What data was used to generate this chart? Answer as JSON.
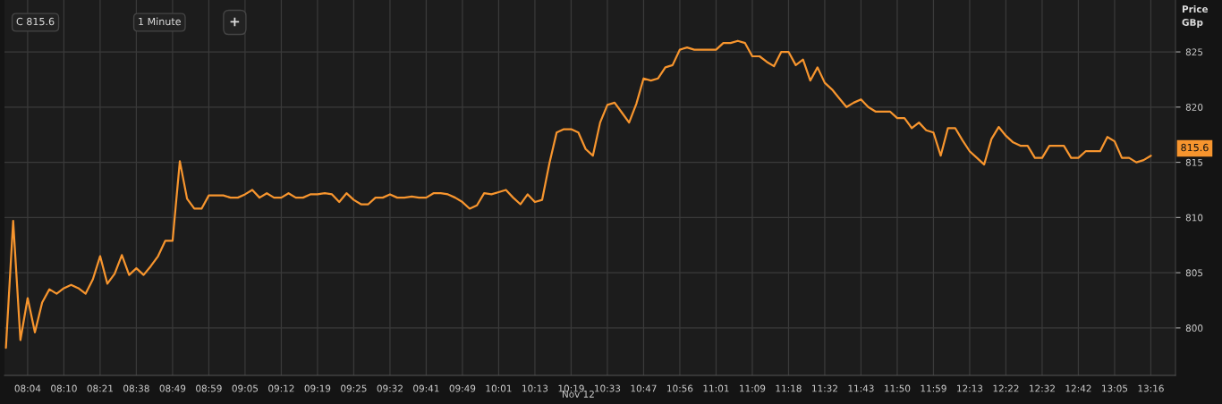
{
  "chart_data": {
    "type": "line",
    "ylabel": "Price\nGBp",
    "xlabel": "Nov 12",
    "annotations": [
      "C 815.6",
      "1 Minute",
      "+",
      "815.6"
    ],
    "categories": [
      null,
      null,
      null,
      "08:04",
      null,
      null,
      null,
      null,
      "08:10",
      null,
      null,
      null,
      null,
      "08:21",
      null,
      null,
      null,
      null,
      "08:38",
      null,
      null,
      null,
      null,
      "08:49",
      null,
      null,
      null,
      null,
      "08:59",
      null,
      null,
      null,
      null,
      "09:05",
      null,
      null,
      null,
      null,
      "09:12",
      null,
      null,
      null,
      null,
      "09:19",
      null,
      null,
      null,
      null,
      "09:25",
      null,
      null,
      null,
      null,
      "09:32",
      null,
      null,
      null,
      null,
      "09:41",
      null,
      null,
      null,
      null,
      "09:49",
      null,
      null,
      null,
      null,
      "10:01",
      null,
      null,
      null,
      null,
      "10:13",
      null,
      null,
      null,
      null,
      "10:19",
      null,
      null,
      null,
      null,
      "10:33",
      null,
      null,
      null,
      null,
      "10:47",
      null,
      null,
      null,
      null,
      "10:56",
      null,
      null,
      null,
      null,
      "11:01",
      null,
      null,
      null,
      null,
      "11:09",
      null,
      null,
      null,
      null,
      "11:18",
      null,
      null,
      null,
      null,
      "11:32",
      null,
      null,
      null,
      null,
      "11:43",
      null,
      null,
      null,
      null,
      "11:50",
      null,
      null,
      null,
      null,
      "11:59",
      null,
      null,
      null,
      null,
      "12:13",
      null,
      null,
      null,
      null,
      "12:22",
      null,
      null,
      null,
      null,
      "12:32",
      null,
      null,
      null,
      null,
      "12:42",
      null,
      null,
      null,
      null,
      "13:05",
      null,
      null,
      null,
      null,
      "13:16"
    ],
    "series": [
      {
        "color": "#f7952e",
        "values": [
          798.2,
          809.7,
          798.9,
          802.7,
          799.6,
          802.3,
          803.5,
          803.1,
          803.6,
          803.9,
          803.6,
          803.1,
          804.4,
          806.5,
          804.0,
          804.9,
          806.6,
          804.8,
          805.4,
          804.8,
          805.6,
          806.5,
          807.9,
          807.9,
          815.1,
          811.7,
          810.8,
          810.8,
          812.0,
          812.0,
          812.0,
          811.8,
          811.8,
          812.1,
          812.5,
          811.8,
          812.2,
          811.8,
          811.8,
          812.2,
          811.8,
          811.8,
          812.1,
          812.1,
          812.2,
          812.1,
          811.4,
          812.2,
          811.6,
          811.2,
          811.2,
          811.8,
          811.8,
          812.1,
          811.8,
          811.8,
          811.9,
          811.8,
          811.8,
          812.2,
          812.2,
          812.1,
          811.8,
          811.4,
          810.8,
          811.1,
          812.2,
          812.1,
          812.3,
          812.5,
          811.8,
          811.2,
          812.1,
          811.4,
          811.6,
          814.9,
          817.7,
          818.0,
          818.0,
          817.7,
          816.2,
          815.6,
          818.6,
          820.2,
          820.4,
          819.5,
          818.6,
          820.3,
          822.6,
          822.4,
          822.6,
          823.6,
          823.8,
          825.2,
          825.4,
          825.2,
          825.2,
          825.2,
          825.2,
          825.8,
          825.8,
          826.0,
          825.8,
          824.6,
          824.6,
          824.1,
          823.7,
          825.0,
          825.0,
          823.8,
          824.3,
          822.4,
          823.6,
          822.2,
          821.6,
          820.8,
          820.0,
          820.4,
          820.7,
          820.0,
          819.6,
          819.6,
          819.6,
          819.0,
          819.0,
          818.1,
          818.6,
          817.9,
          817.7,
          815.6,
          818.1,
          818.1,
          817.0,
          816.0,
          815.4,
          814.8,
          817.1,
          818.2,
          817.4,
          816.8,
          816.5,
          816.5,
          815.4,
          815.4,
          816.5,
          816.5,
          816.5,
          815.4,
          815.4,
          816.0,
          816.0,
          816.0,
          817.3,
          816.9,
          815.4,
          815.4,
          815.0,
          815.2,
          815.6
        ]
      }
    ],
    "ylim": [
      795.7,
      829.7
    ],
    "yticks": [
      800,
      805,
      810,
      815,
      820,
      825
    ],
    "grid": true,
    "marker": "none",
    "line_style": "solid"
  }
}
